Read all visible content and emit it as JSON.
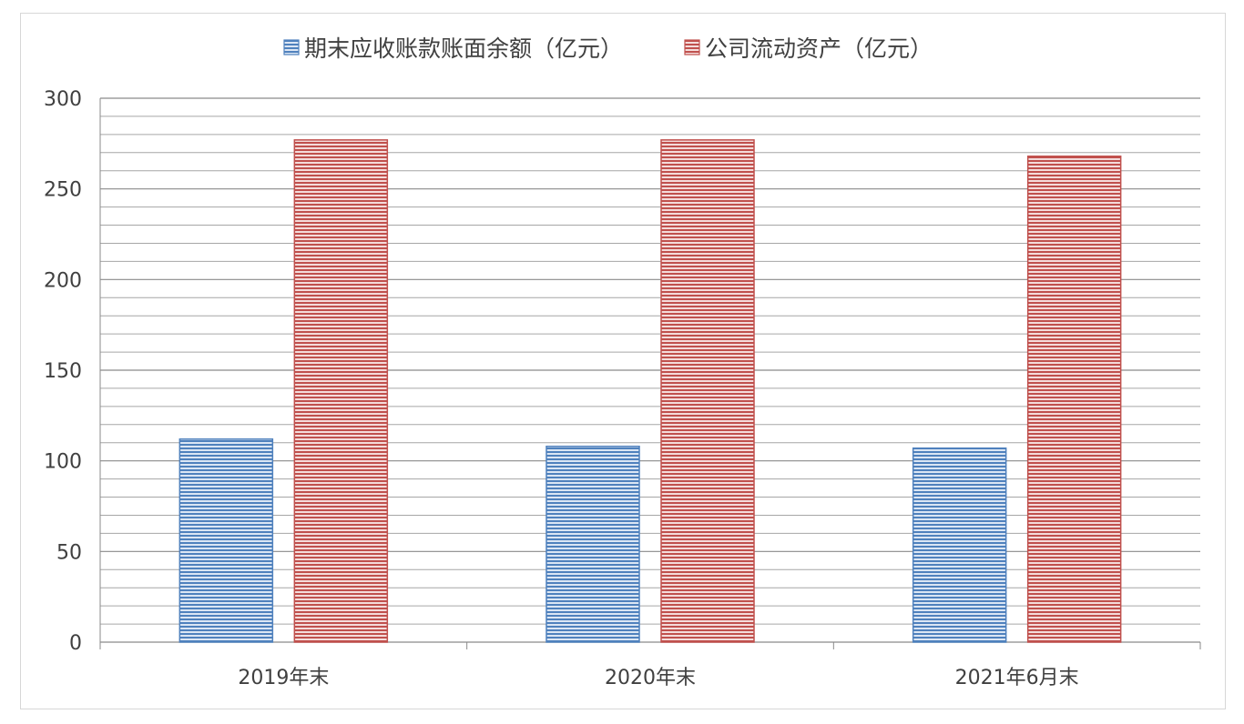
{
  "chart_data": {
    "type": "bar",
    "title": "",
    "xlabel": "",
    "ylabel": "",
    "categories": [
      "2019年末",
      "2020年末",
      "2021年6月末"
    ],
    "series": [
      {
        "name": "期末应收账款账面余额（亿元）",
        "values": [
          112,
          108,
          107
        ],
        "color": "#4f81bd"
      },
      {
        "name": "公司流动资产（亿元）",
        "values": [
          277,
          277,
          268
        ],
        "color": "#c0504d"
      }
    ],
    "ylim": [
      0,
      300
    ],
    "yticks": [
      0,
      50,
      100,
      150,
      200,
      250,
      300
    ],
    "grid": true,
    "legend_position": "top"
  }
}
